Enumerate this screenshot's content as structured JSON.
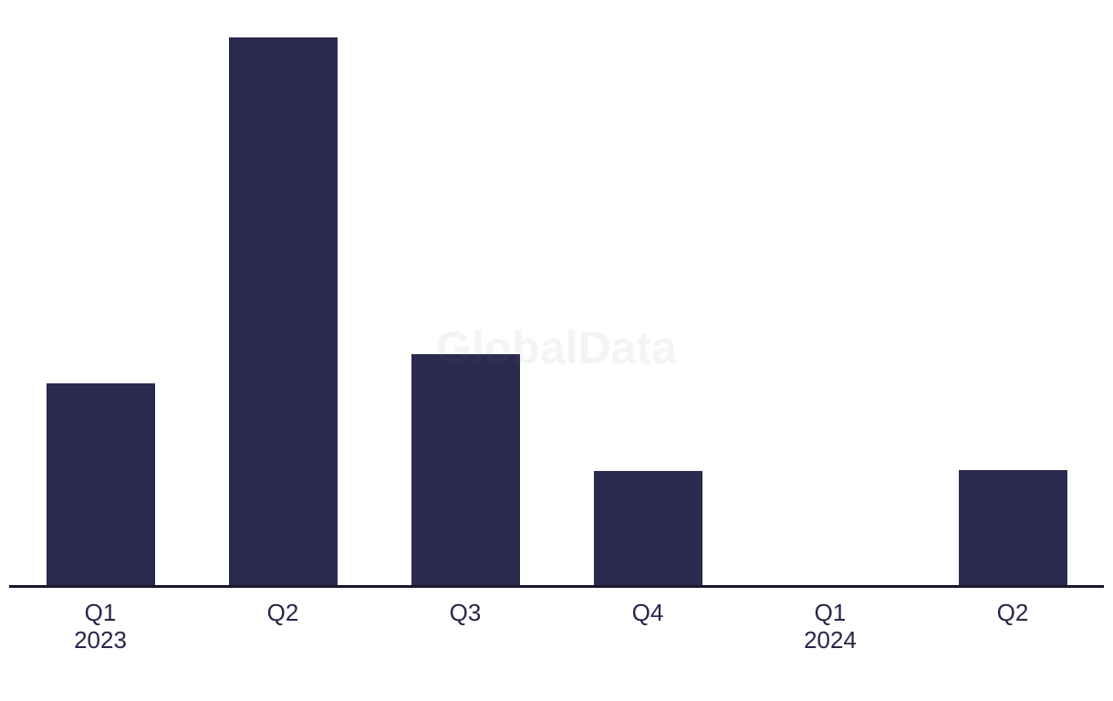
{
  "watermark": "GlobalData",
  "colors": {
    "background": "#ffffff",
    "bar": "#2a2a4e",
    "axis": "#17172f",
    "label": "#26264a",
    "watermark_text": "rgba(110,110,135,0.08)"
  },
  "chart_data": {
    "type": "bar",
    "categories": [
      "Q1",
      "Q2",
      "Q3",
      "Q4",
      "Q1",
      "Q2"
    ],
    "year_labels": [
      "2023",
      "",
      "",
      "",
      "2024",
      ""
    ],
    "values": [
      36.8,
      100,
      42.2,
      20.8,
      0,
      21
    ],
    "unit": "relative height, % of tallest bar (no y-axis shown)",
    "title": "",
    "xlabel": "",
    "ylabel": "",
    "ylim": [
      0,
      100
    ],
    "grid": false,
    "legend": false,
    "watermark": "GlobalData"
  }
}
